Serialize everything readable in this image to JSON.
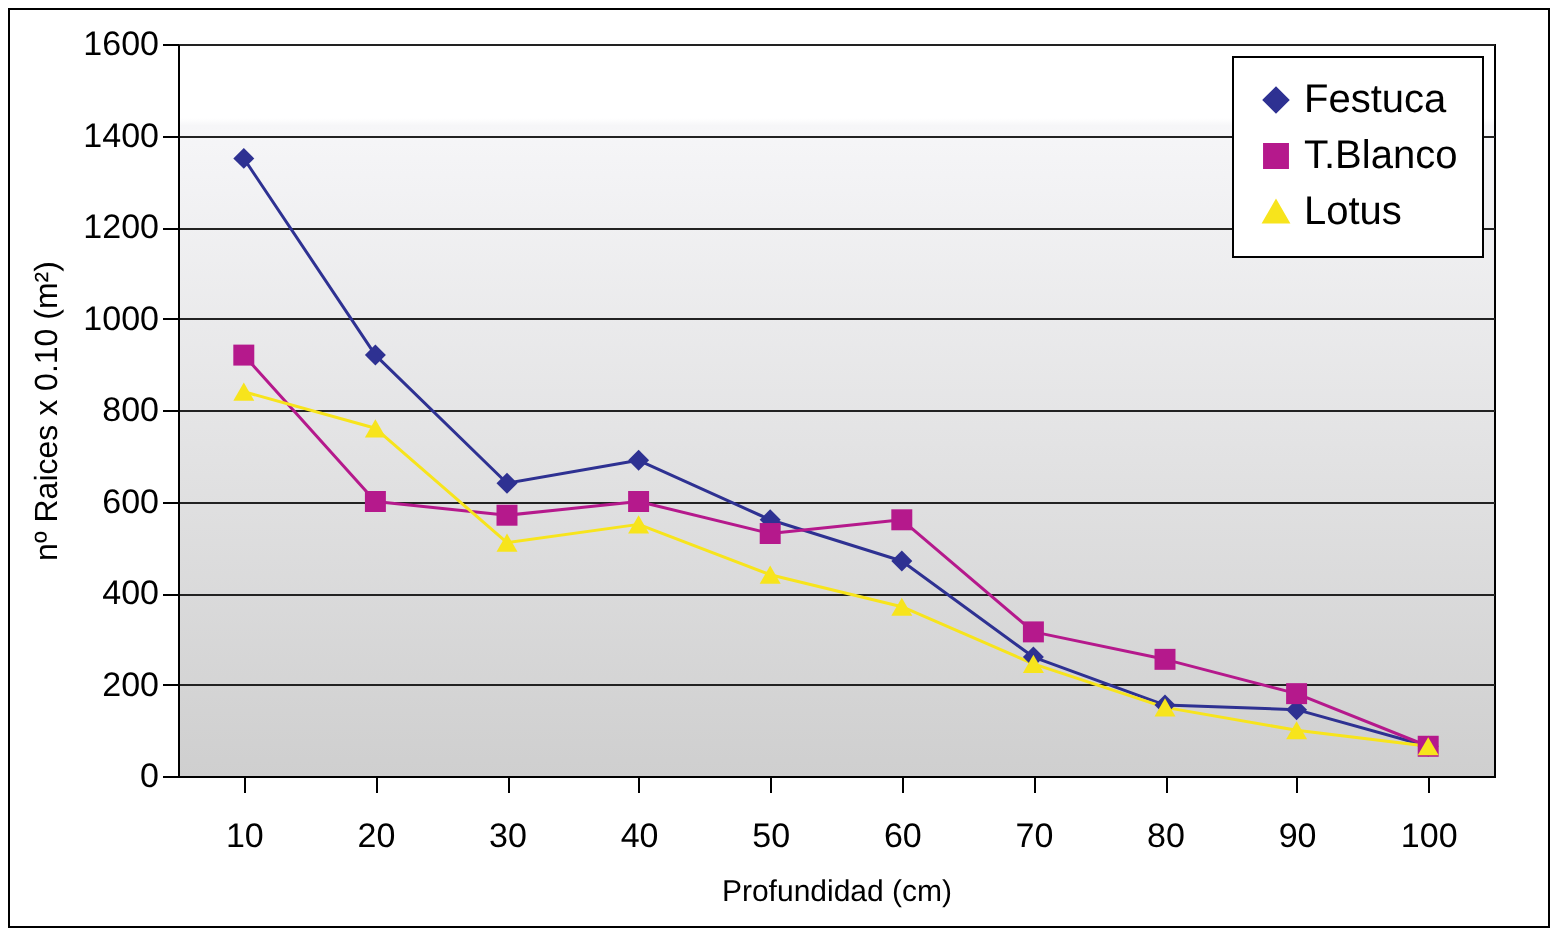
{
  "chart_data": {
    "type": "line",
    "xlabel": "Profundidad (cm)",
    "ylabel": "nº Raices x 0.10 (m²)",
    "categories": [
      "10",
      "20",
      "30",
      "40",
      "50",
      "60",
      "70",
      "80",
      "90",
      "100"
    ],
    "series": [
      {
        "name": "Festuca",
        "color": "#2e3192",
        "marker": "diamond",
        "values": [
          1350,
          920,
          640,
          690,
          560,
          470,
          260,
          155,
          145,
          65
        ]
      },
      {
        "name": "T.Blanco",
        "color": "#b5198c",
        "marker": "square",
        "values": [
          920,
          600,
          570,
          600,
          530,
          560,
          315,
          255,
          180,
          65
        ]
      },
      {
        "name": "Lotus",
        "color": "#f7e41c",
        "marker": "triangle",
        "values": [
          840,
          760,
          510,
          550,
          440,
          370,
          245,
          150,
          100,
          65
        ]
      }
    ],
    "ylim": [
      0,
      1600
    ],
    "yticks": [
      0,
      200,
      400,
      600,
      800,
      1000,
      1200,
      1400,
      1600
    ],
    "grid": "y",
    "legend": "top right",
    "line_style": "solid"
  }
}
